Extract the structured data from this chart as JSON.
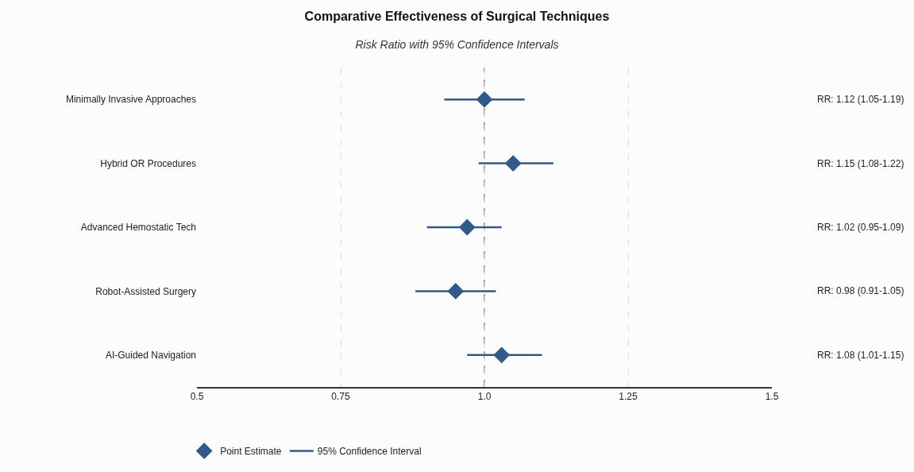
{
  "chart_data": {
    "type": "scatter",
    "orientation": "horizontal",
    "title": "Comparative Effectiveness of Surgical Techniques",
    "subtitle": "Risk Ratio with 95% Confidence Intervals",
    "categories": [
      "Minimally Invasive Approaches",
      "Hybrid OR Procedures",
      "Advanced Hemostatic Tech",
      "Robot-Assisted Surgery",
      "AI-Guided Navigation"
    ],
    "series": [
      {
        "name": "Point Estimate",
        "color": "#2f5a8a",
        "values": [
          1.0,
          1.05,
          0.97,
          0.95,
          1.03
        ],
        "errors": [
          [
            0.93,
            1.07
          ],
          [
            0.99,
            1.12
          ],
          [
            0.9,
            1.03
          ],
          [
            0.88,
            1.02
          ],
          [
            0.97,
            1.1
          ]
        ]
      },
      {
        "name": "95% Confidence Interval",
        "type": "line",
        "color": "#2f5a8a",
        "values": [
          null,
          null,
          null,
          null,
          null
        ]
      }
    ],
    "marker": "diamond",
    "xlim": [
      0.5,
      1.5
    ],
    "xticks": [
      0.5,
      0.75,
      {
        "value": 1,
        "label": "1.0"
      },
      1.25,
      1.5
    ],
    "grid": "x",
    "legend": "bottom left",
    "ref_lines": [
      {
        "axis": "x",
        "value": 1,
        "color": "#888888",
        "line_style": "dashed"
      }
    ],
    "annotations": [
      "RR: 1.12 (1.05-1.19)",
      "RR: 1.15 (1.08-1.22)",
      "RR: 1.02 (0.95-1.09)",
      "RR: 0.98 (0.91-1.05)",
      "RR: 1.08 (1.01-1.15)"
    ]
  }
}
